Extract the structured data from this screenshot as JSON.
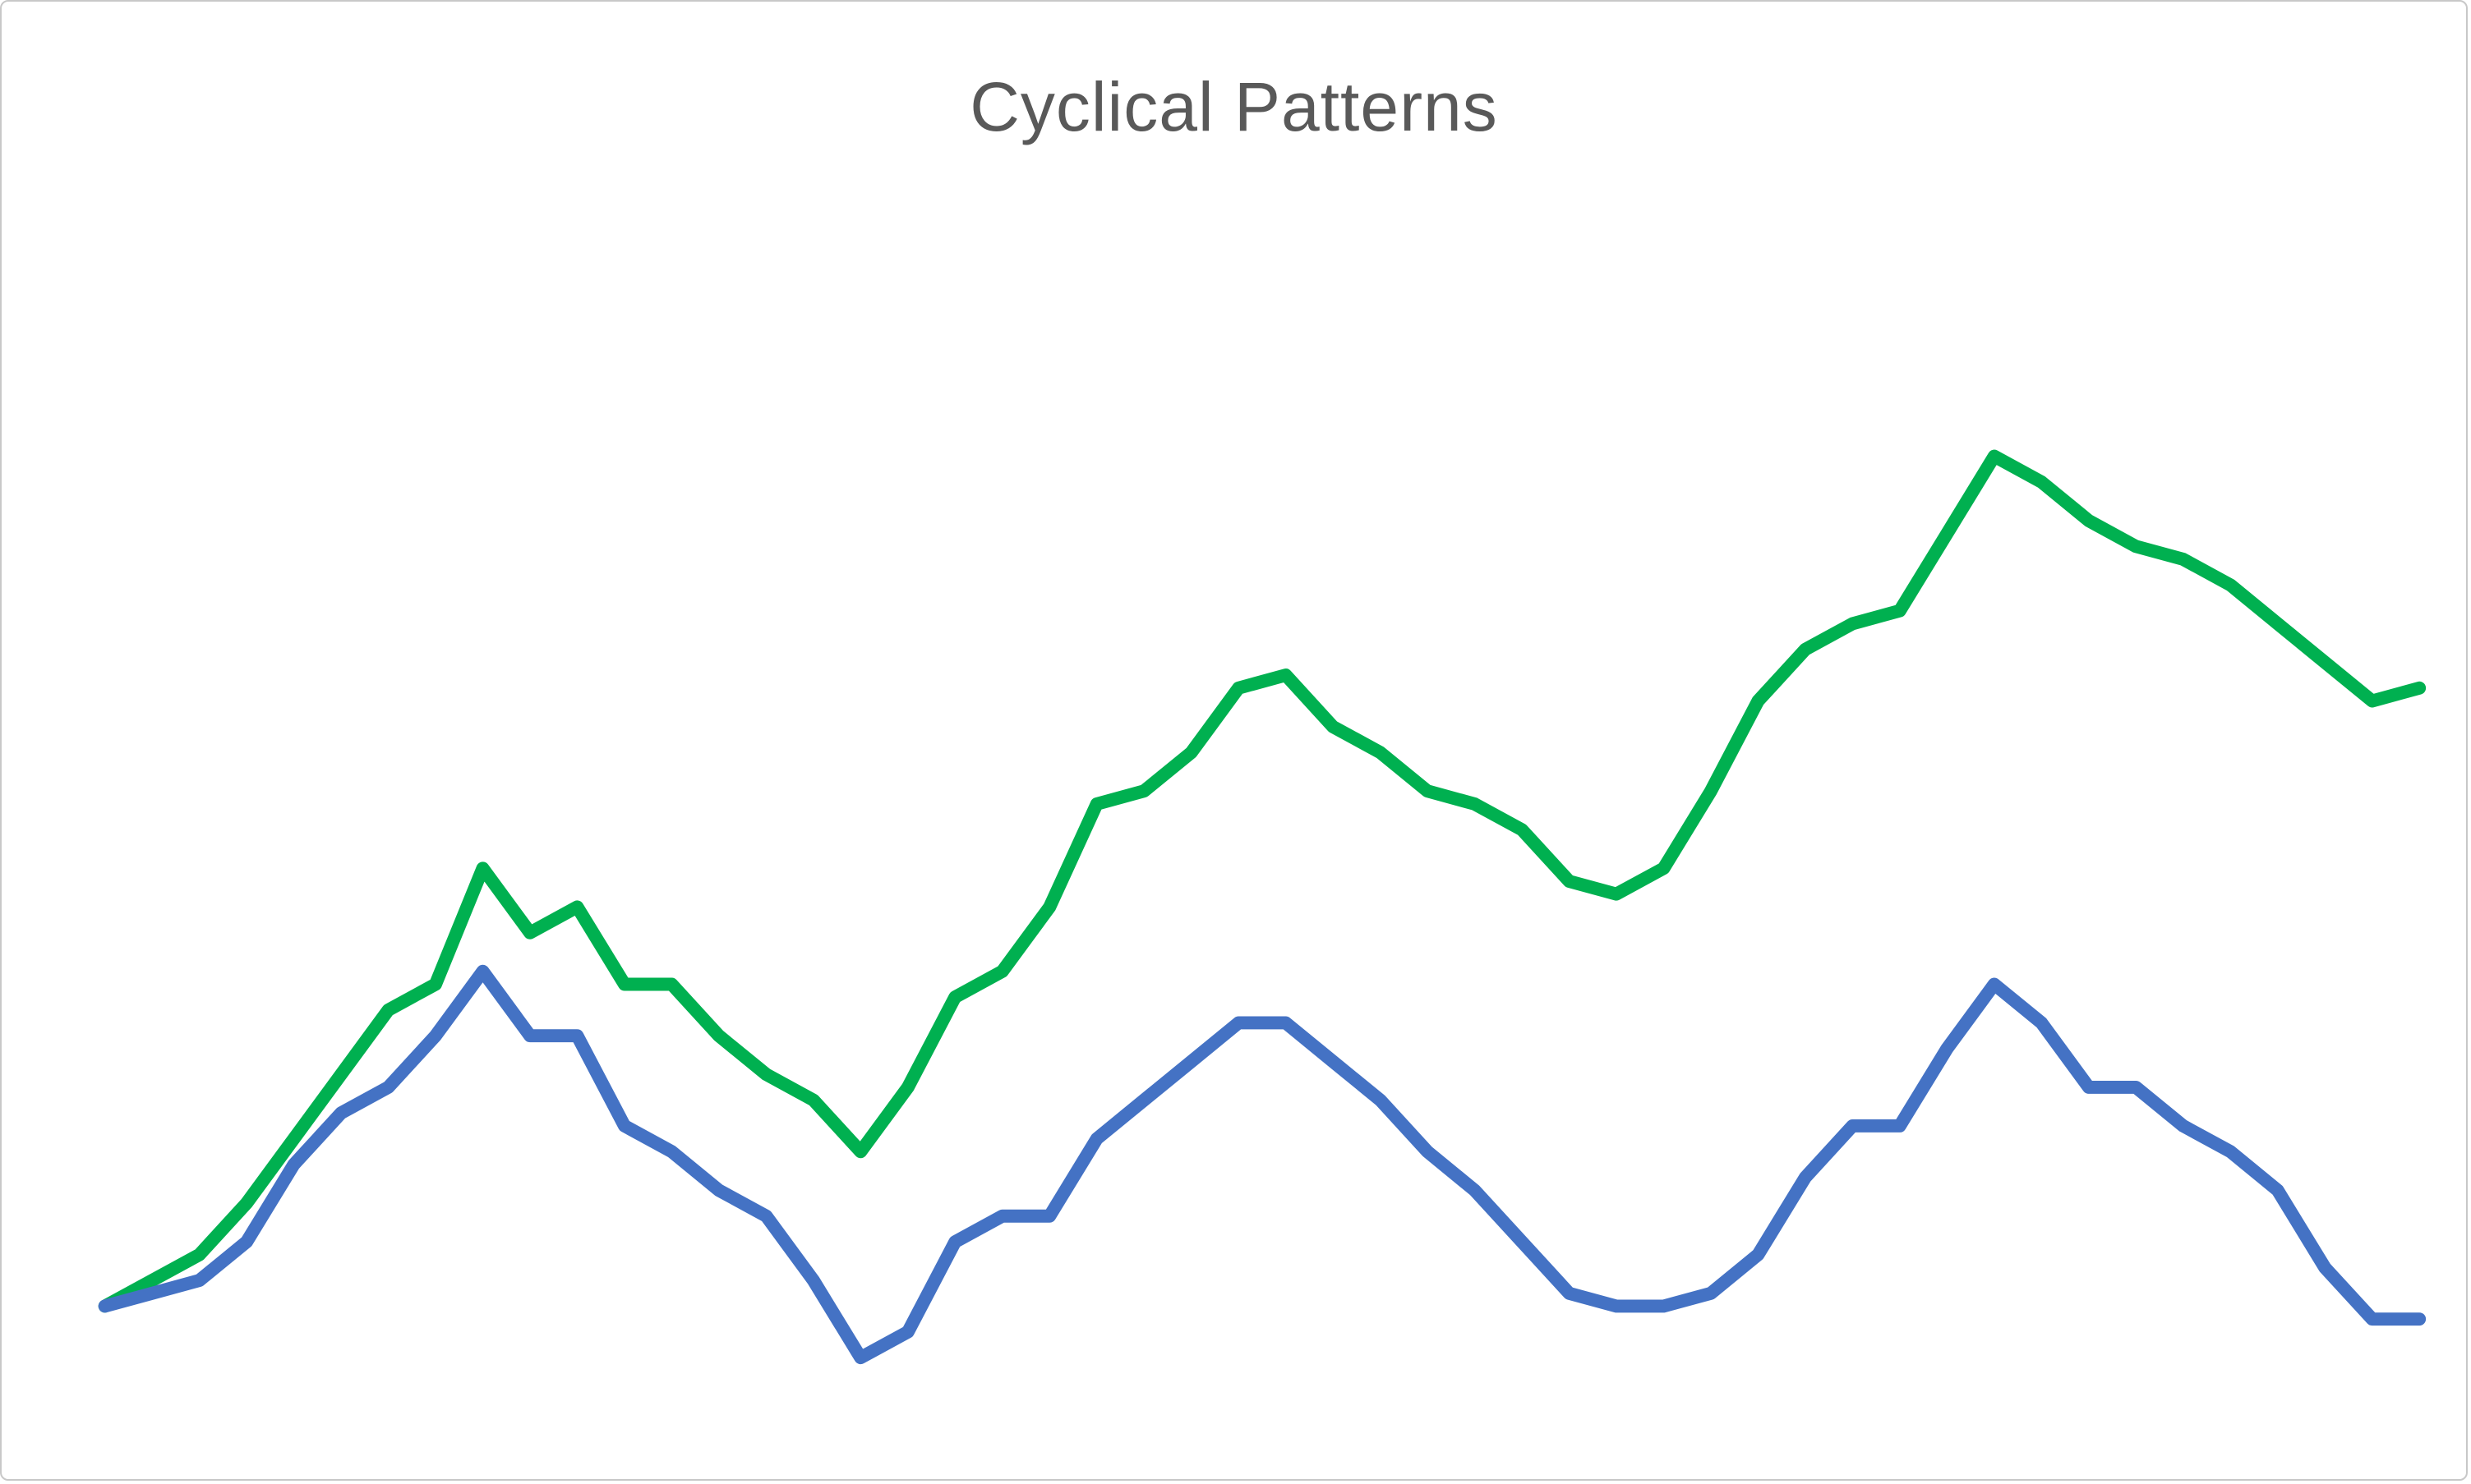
{
  "window": {
    "background_color": "#FFFFFF",
    "border_color": "#C8C8C8"
  },
  "chart": {
    "title": "Cyclical Patterns",
    "title_color": "#595959"
  },
  "chart_data": {
    "type": "line",
    "title": "Cyclical Patterns",
    "xlabel": "",
    "ylabel": "",
    "grid": false,
    "legend": "none",
    "axes_visible": false,
    "ylim": [
      0,
      100
    ],
    "x": [
      0,
      1,
      2,
      3,
      4,
      5,
      6,
      7,
      8,
      9,
      10,
      11,
      12,
      13,
      14,
      15,
      16,
      17,
      18,
      19,
      20,
      21,
      22,
      23,
      24,
      25,
      26,
      27,
      28,
      29,
      30,
      31,
      32,
      33,
      34,
      35,
      36,
      37,
      38,
      39,
      40,
      41,
      42,
      43,
      44,
      45,
      46,
      47,
      48,
      49
    ],
    "series": [
      {
        "name": "green-line",
        "color": "#00B050",
        "values": [
          6,
          8,
          10,
          14,
          19,
          24,
          29,
          31,
          40,
          35,
          37,
          31,
          31,
          27,
          24,
          22,
          18,
          23,
          30,
          32,
          37,
          45,
          46,
          49,
          54,
          55,
          51,
          49,
          46,
          45,
          43,
          39,
          38,
          40,
          46,
          53,
          57,
          59,
          60,
          66,
          72,
          70,
          67,
          65,
          64,
          62,
          59,
          56,
          53,
          54
        ]
      },
      {
        "name": "blue-line",
        "color": "#4472C4",
        "values": [
          6,
          7,
          8,
          11,
          17,
          21,
          23,
          27,
          32,
          27,
          27,
          20,
          18,
          15,
          13,
          8,
          2,
          4,
          11,
          13,
          13,
          19,
          22,
          25,
          28,
          28,
          25,
          22,
          18,
          15,
          11,
          7,
          6,
          6,
          7,
          10,
          16,
          20,
          20,
          26,
          31,
          28,
          23,
          23,
          20,
          18,
          15,
          9,
          5,
          5
        ]
      }
    ]
  }
}
